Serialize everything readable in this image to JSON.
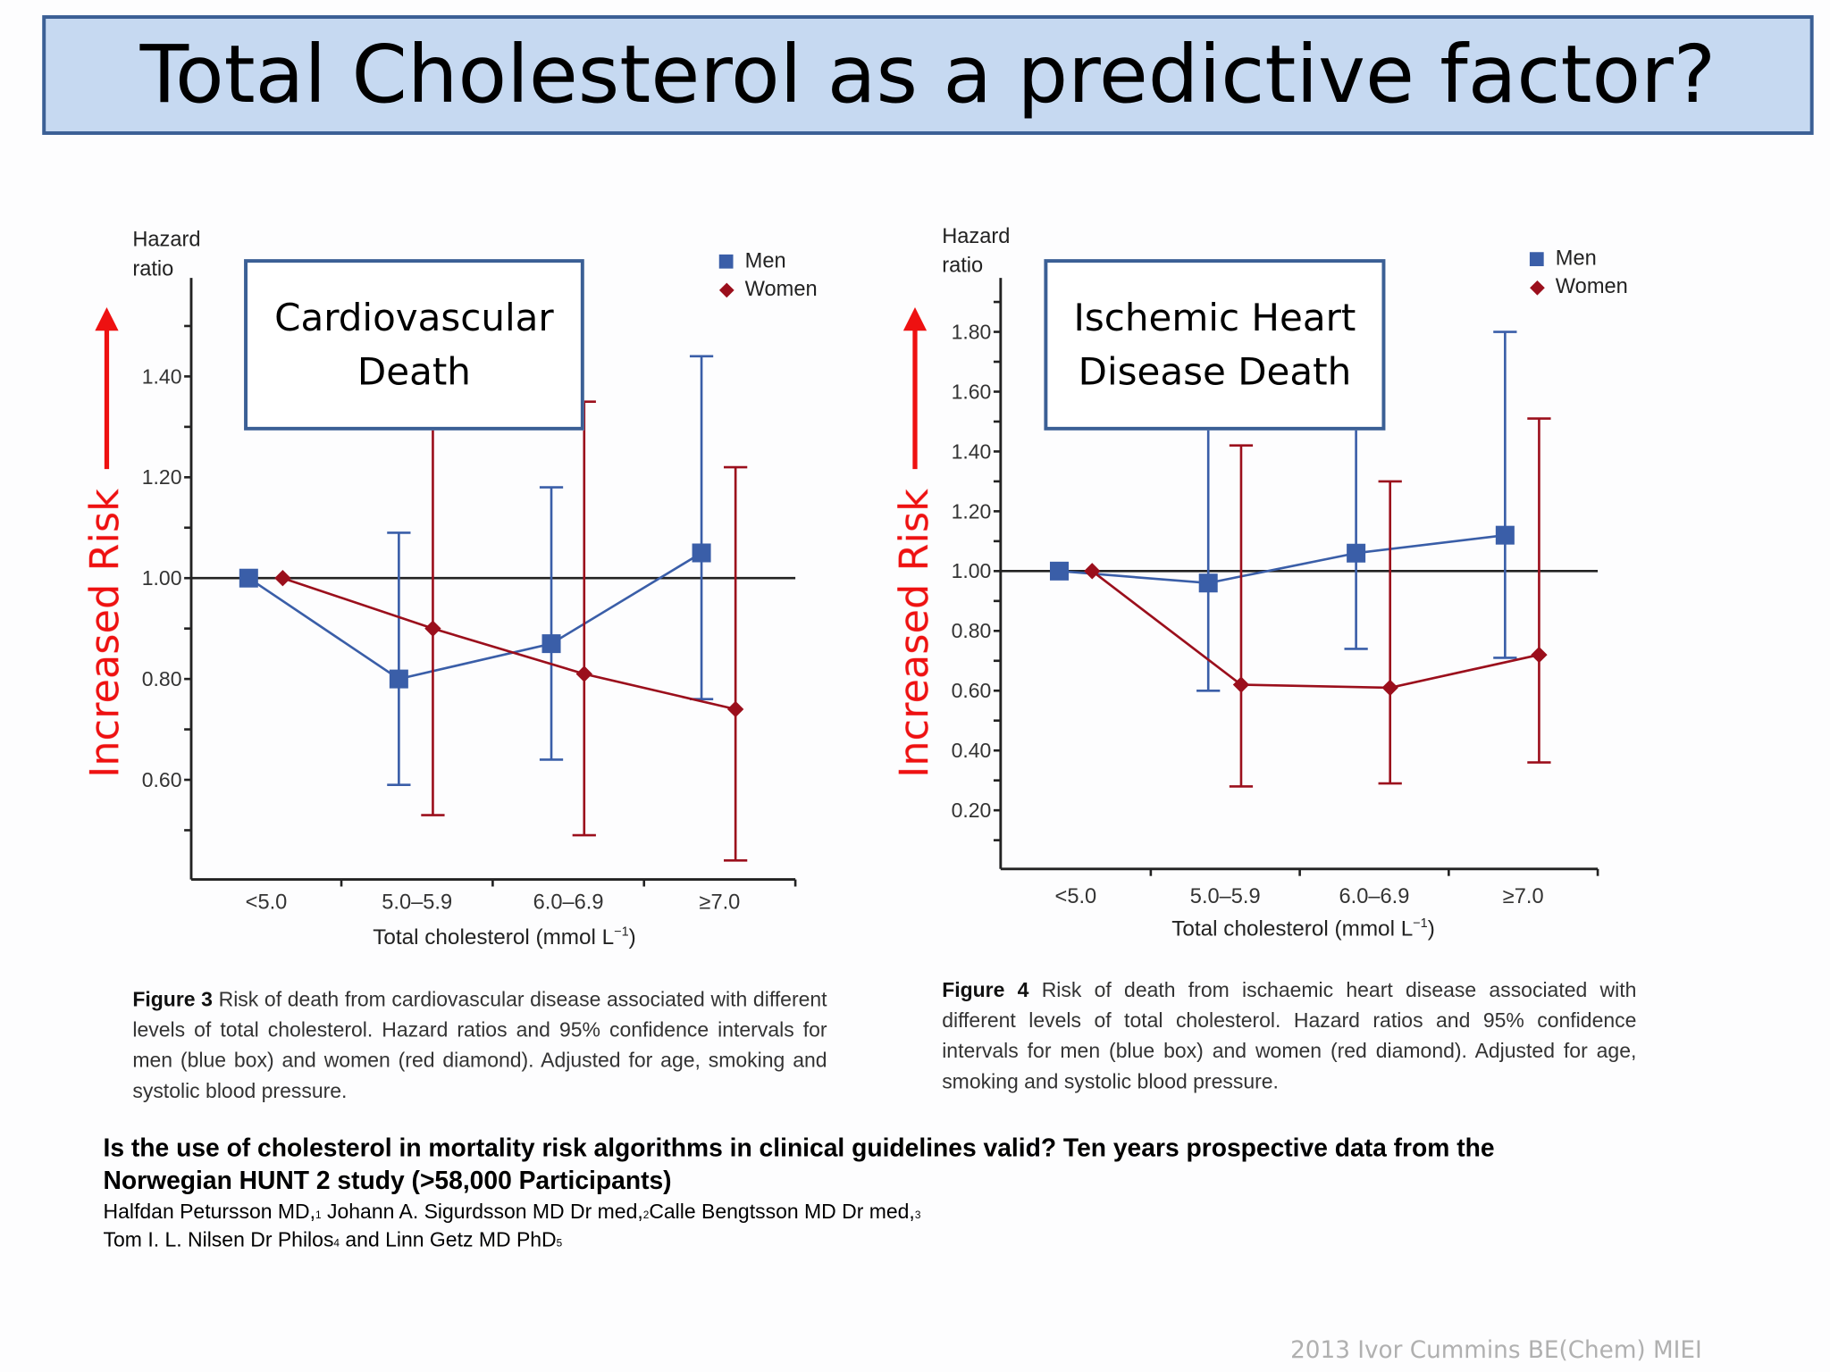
{
  "title": "Total Cholesterol as a predictive factor?",
  "colors": {
    "men": "#3a5ea8",
    "women": "#9b0f1c",
    "title_fill": "#c6d9f1",
    "title_border": "#3b5f95",
    "risk_arrow": "#ee1111"
  },
  "risk_label": "Increased Risk",
  "chart_data": [
    {
      "type": "line",
      "annotation": [
        "Cardiovascular",
        "Death"
      ],
      "ylabel": [
        "Hazard",
        "ratio"
      ],
      "xlabel": "Total cholesterol (mmol L",
      "xlabel_sup": "−1",
      "xlabel_end": ")",
      "categories": [
        "<5.0",
        "5.0–5.9",
        "6.0–6.9",
        "≥7.0"
      ],
      "yticks": [
        "0.60",
        "0.80",
        "1.00",
        "1.20",
        "1.40"
      ],
      "ylim": [
        0.4,
        1.6
      ],
      "reference_line": 1.0,
      "legend": [
        "Men",
        "Women"
      ],
      "legend_placement": "top-right",
      "series": [
        {
          "name": "Men",
          "marker": "square",
          "values": [
            1.0,
            0.8,
            0.87,
            1.05
          ],
          "ci_low": [
            null,
            0.59,
            0.64,
            0.76
          ],
          "ci_high": [
            null,
            1.09,
            1.18,
            1.44
          ]
        },
        {
          "name": "Women",
          "marker": "diamond",
          "values": [
            1.0,
            0.9,
            0.81,
            0.74
          ],
          "ci_low": [
            null,
            0.53,
            0.49,
            0.44
          ],
          "ci_high": [
            null,
            null,
            1.35,
            1.22
          ]
        }
      ],
      "caption_label": "Figure 3",
      "caption": "Risk of death from cardiovascular disease associated with different levels of total cholesterol. Hazard ratios and 95% confidence intervals for men (blue box) and women (red diamond). Adjusted for age, smoking and systolic blood pressure."
    },
    {
      "type": "line",
      "annotation": [
        "Ischemic Heart",
        "Disease Death"
      ],
      "ylabel": [
        "Hazard",
        "ratio"
      ],
      "xlabel": "Total cholesterol (mmol L",
      "xlabel_sup": "−1",
      "xlabel_end": ")",
      "categories": [
        "<5.0",
        "5.0–5.9",
        "6.0–6.9",
        "≥7.0"
      ],
      "yticks": [
        "0.20",
        "0.40",
        "0.60",
        "0.80",
        "1.00",
        "1.20",
        "1.40",
        "1.60",
        "1.80"
      ],
      "ylim": [
        0.0,
        2.0
      ],
      "reference_line": 1.0,
      "legend": [
        "Men",
        "Women"
      ],
      "legend_placement": "top-right",
      "series": [
        {
          "name": "Men",
          "marker": "square",
          "values": [
            1.0,
            0.96,
            1.06,
            1.12
          ],
          "ci_low": [
            null,
            0.6,
            0.74,
            0.71
          ],
          "ci_high": [
            null,
            null,
            null,
            1.8
          ]
        },
        {
          "name": "Women",
          "marker": "diamond",
          "values": [
            1.0,
            0.62,
            0.61,
            0.72
          ],
          "ci_low": [
            null,
            0.28,
            0.29,
            0.36
          ],
          "ci_high": [
            null,
            1.42,
            1.3,
            1.51
          ]
        }
      ],
      "caption_label": "Figure 4",
      "caption": "Risk of death from ischaemic heart disease associated with different levels of total cholesterol. Hazard ratios and 95% confidence intervals for men (blue box) and women (red diamond). Adjusted for age, smoking and systolic blood pressure."
    }
  ],
  "footer": {
    "study_title_line1": "Is the use of cholesterol in mortality risk algorithms in clinical guidelines valid? Ten years prospective data from the",
    "study_title_line2": "Norwegian HUNT 2 study (>58,000 Participants)",
    "authors": [
      {
        "name": "Halfdan Petursson MD,",
        "sup": "1"
      },
      {
        "name": " Johann A. Sigurdsson MD Dr med,",
        "sup": "2"
      },
      {
        "name": "Calle Bengtsson MD Dr med,",
        "sup": "3"
      },
      {
        "name": "Tom I. L. Nilsen Dr Philos",
        "sup": "4"
      },
      {
        "name": " and Linn Getz MD PhD",
        "sup": "5"
      }
    ],
    "watermark": "2013 Ivor Cummins BE(Chem) MIEI"
  }
}
